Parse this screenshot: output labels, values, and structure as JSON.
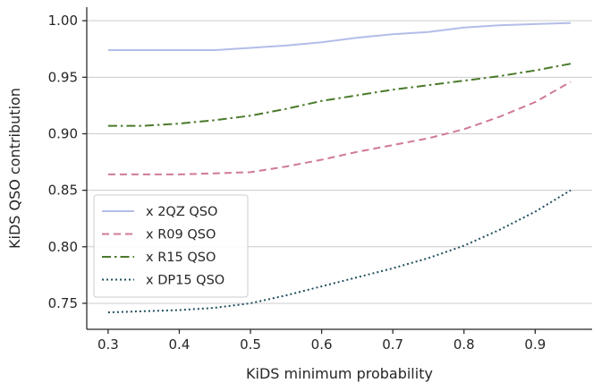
{
  "chart_data": {
    "type": "line",
    "title": "",
    "xlabel": "KiDS minimum probability",
    "ylabel": "KiDS QSO contribution",
    "xlim": [
      0.27,
      0.98
    ],
    "ylim": [
      0.727,
      1.012
    ],
    "xticks": [
      0.3,
      0.4,
      0.5,
      0.6,
      0.7,
      0.8,
      0.9
    ],
    "xtick_labels": [
      "0.3",
      "0.4",
      "0.5",
      "0.6",
      "0.7",
      "0.8",
      "0.9"
    ],
    "yticks": [
      0.75,
      0.8,
      0.85,
      0.9,
      0.95,
      1.0
    ],
    "ytick_labels": [
      "0.75",
      "0.80",
      "0.85",
      "0.90",
      "0.95",
      "1.00"
    ],
    "grid": "horizontal",
    "legend_position": "lower-left",
    "x": [
      0.3,
      0.35,
      0.4,
      0.45,
      0.5,
      0.55,
      0.6,
      0.65,
      0.7,
      0.75,
      0.8,
      0.85,
      0.9,
      0.95
    ],
    "series": [
      {
        "name": "x 2QZ QSO",
        "color": "#b3bde8",
        "style": "solid",
        "values": [
          0.974,
          0.974,
          0.974,
          0.974,
          0.976,
          0.978,
          0.981,
          0.985,
          0.988,
          0.99,
          0.994,
          0.996,
          0.997,
          0.998
        ]
      },
      {
        "name": "x R09 QSO",
        "color": "#d07a93",
        "style": "dashed",
        "values": [
          0.864,
          0.864,
          0.864,
          0.865,
          0.866,
          0.871,
          0.877,
          0.884,
          0.89,
          0.896,
          0.904,
          0.915,
          0.928,
          0.946
        ]
      },
      {
        "name": "x R15 QSO",
        "color": "#4a7a2a",
        "style": "dashdot",
        "values": [
          0.907,
          0.907,
          0.909,
          0.912,
          0.916,
          0.922,
          0.929,
          0.934,
          0.939,
          0.943,
          0.947,
          0.951,
          0.956,
          0.962
        ]
      },
      {
        "name": "x DP15 QSO",
        "color": "#1f4e5f",
        "style": "dotted",
        "values": [
          0.742,
          0.743,
          0.744,
          0.746,
          0.75,
          0.757,
          0.765,
          0.773,
          0.781,
          0.79,
          0.801,
          0.815,
          0.831,
          0.85
        ]
      }
    ]
  }
}
